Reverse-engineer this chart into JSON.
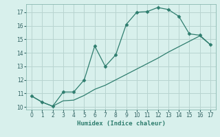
{
  "xlabel": "Humidex (Indice chaleur)",
  "line1_x": [
    0,
    1,
    2,
    3,
    4,
    5,
    6,
    7,
    8,
    9,
    10,
    11,
    12,
    13,
    14,
    15,
    16,
    17
  ],
  "line1_y": [
    10.8,
    10.35,
    10.05,
    11.1,
    11.1,
    12.0,
    14.5,
    13.0,
    13.85,
    16.1,
    17.0,
    17.05,
    17.35,
    17.2,
    16.7,
    15.4,
    15.3,
    14.6
  ],
  "line2_x": [
    0,
    1,
    2,
    3,
    4,
    5,
    6,
    7,
    8,
    9,
    10,
    11,
    12,
    13,
    14,
    15,
    16,
    17
  ],
  "line2_y": [
    10.8,
    10.35,
    10.05,
    10.45,
    10.5,
    10.85,
    11.3,
    11.6,
    12.0,
    12.4,
    12.8,
    13.2,
    13.6,
    14.05,
    14.45,
    14.85,
    15.25,
    14.6
  ],
  "line_color": "#2e7d6e",
  "bg_color": "#d8f0ec",
  "grid_color": "#b8d4d0",
  "xlim": [
    -0.5,
    17.5
  ],
  "ylim": [
    9.8,
    17.6
  ],
  "xticks": [
    0,
    1,
    2,
    3,
    4,
    5,
    6,
    7,
    8,
    9,
    10,
    11,
    12,
    13,
    14,
    15,
    16,
    17
  ],
  "yticks": [
    10,
    11,
    12,
    13,
    14,
    15,
    16,
    17
  ],
  "marker": "D",
  "markersize": 2.5,
  "linewidth": 0.9
}
